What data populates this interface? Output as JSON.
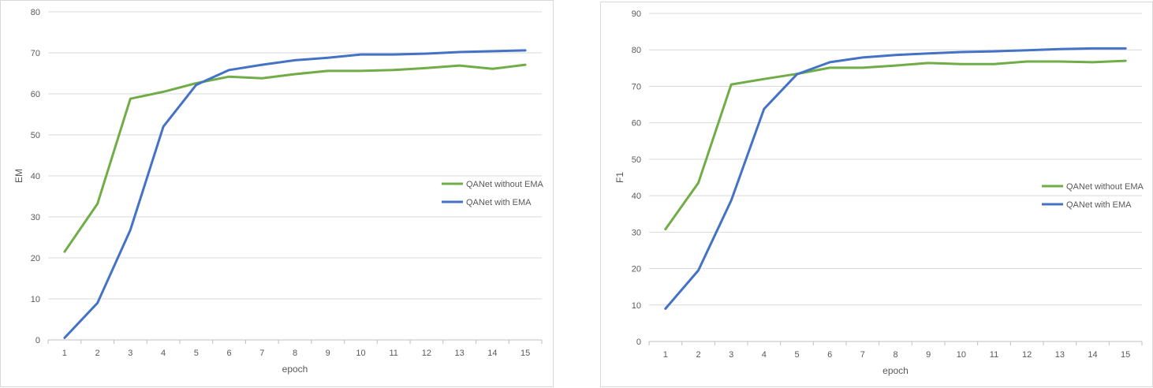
{
  "colors": {
    "without_ema": "#70ad47",
    "with_ema": "#4472c4",
    "grid": "#d9d9d9",
    "axis": "#bfbfbf"
  },
  "chart_data": [
    {
      "type": "line",
      "xlabel": "epoch",
      "ylabel": "EM",
      "ylim": [
        0,
        80
      ],
      "yticks": [
        0,
        10,
        20,
        30,
        40,
        50,
        60,
        70,
        80
      ],
      "categories": [
        "1",
        "2",
        "3",
        "4",
        "5",
        "6",
        "7",
        "8",
        "9",
        "10",
        "11",
        "12",
        "13",
        "14",
        "15"
      ],
      "grid": true,
      "legend": "right",
      "series": [
        {
          "name": "QANet without EMA",
          "color": "#70ad47",
          "values": [
            21.5,
            33.2,
            58.8,
            60.5,
            62.6,
            64.2,
            63.8,
            64.8,
            65.6,
            65.6,
            65.8,
            66.3,
            66.9,
            66.1,
            67.1
          ]
        },
        {
          "name": "QANet with EMA",
          "color": "#4472c4",
          "values": [
            0.5,
            9.0,
            26.8,
            52.0,
            62.2,
            65.8,
            67.1,
            68.2,
            68.8,
            69.6,
            69.6,
            69.8,
            70.2,
            70.4,
            70.6
          ]
        }
      ]
    },
    {
      "type": "line",
      "xlabel": "epoch",
      "ylabel": "F1",
      "ylim": [
        0,
        90
      ],
      "yticks": [
        0,
        10,
        20,
        30,
        40,
        50,
        60,
        70,
        80,
        90
      ],
      "categories": [
        "1",
        "2",
        "3",
        "4",
        "5",
        "6",
        "7",
        "8",
        "9",
        "10",
        "11",
        "12",
        "13",
        "14",
        "15"
      ],
      "grid": true,
      "legend": "right",
      "series": [
        {
          "name": "QANet without EMA",
          "color": "#70ad47",
          "values": [
            30.8,
            43.5,
            70.5,
            72.0,
            73.4,
            75.1,
            75.1,
            75.7,
            76.4,
            76.1,
            76.1,
            76.8,
            76.8,
            76.6,
            77.0
          ]
        },
        {
          "name": "QANet with EMA",
          "color": "#4472c4",
          "values": [
            9.0,
            19.5,
            38.7,
            63.8,
            73.3,
            76.6,
            77.9,
            78.6,
            79.0,
            79.4,
            79.6,
            79.9,
            80.2,
            80.4,
            80.4
          ]
        }
      ]
    }
  ]
}
